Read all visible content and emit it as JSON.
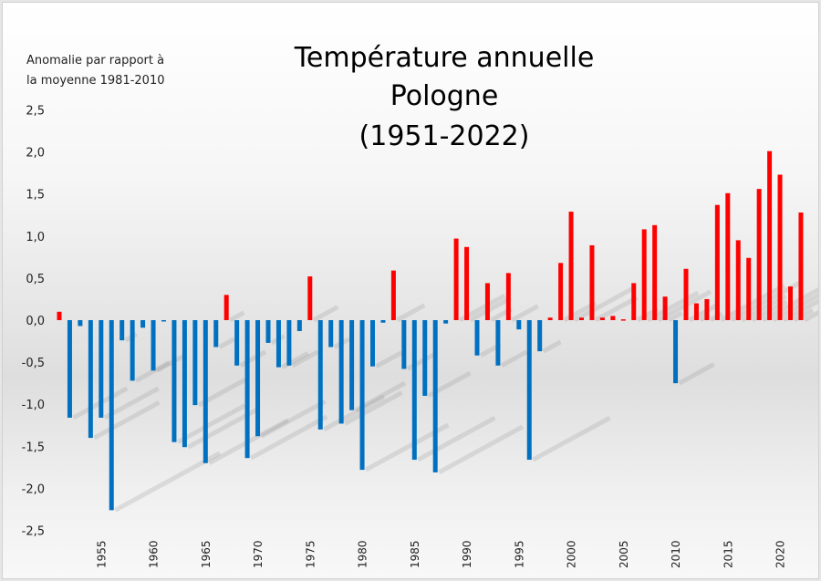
{
  "chart_data": {
    "type": "bar",
    "title_lines": [
      "Température annuelle",
      "Pologne",
      "(1951-2022)"
    ],
    "ylabel_lines": [
      "Anomalie par rapport à",
      "la moyenne 1981-2010"
    ],
    "xlabel": "",
    "ylim": [
      -2.5,
      2.5
    ],
    "yticks": [
      "2,5",
      "2,0",
      "1,5",
      "1,0",
      "0,5",
      "0,0",
      "-0,5",
      "-1,0",
      "-1,5",
      "-2,0",
      "-2,5"
    ],
    "ytick_values": [
      2.5,
      2.0,
      1.5,
      1.0,
      0.5,
      0.0,
      -0.5,
      -1.0,
      -1.5,
      -2.0,
      -2.5
    ],
    "xticks": [
      "1955",
      "1960",
      "1965",
      "1970",
      "1975",
      "1980",
      "1985",
      "1990",
      "1995",
      "2000",
      "2005",
      "2010",
      "2015",
      "2020"
    ],
    "grid": false,
    "legend": "none",
    "colors": {
      "positive": "#ff0000",
      "negative": "#0070c0"
    },
    "years": [
      1951,
      1952,
      1953,
      1954,
      1955,
      1956,
      1957,
      1958,
      1959,
      1960,
      1961,
      1962,
      1963,
      1964,
      1965,
      1966,
      1967,
      1968,
      1969,
      1970,
      1971,
      1972,
      1973,
      1974,
      1975,
      1976,
      1977,
      1978,
      1979,
      1980,
      1981,
      1982,
      1983,
      1984,
      1985,
      1986,
      1987,
      1988,
      1989,
      1990,
      1991,
      1992,
      1993,
      1994,
      1995,
      1996,
      1997,
      1998,
      1999,
      2000,
      2001,
      2002,
      2003,
      2004,
      2005,
      2006,
      2007,
      2008,
      2009,
      2010,
      2011,
      2012,
      2013,
      2014,
      2015,
      2016,
      2017,
      2018,
      2019,
      2020,
      2021,
      2022
    ],
    "values": [
      0.1,
      -1.16,
      -0.07,
      -1.4,
      -1.16,
      -2.26,
      -0.24,
      -0.72,
      -0.09,
      -0.6,
      -0.01,
      -1.45,
      -1.51,
      -1.01,
      -1.7,
      -0.32,
      0.3,
      -0.54,
      -1.64,
      -1.38,
      -0.27,
      -0.56,
      -0.54,
      -0.13,
      0.52,
      -1.3,
      -0.32,
      -1.23,
      -1.07,
      -1.78,
      -0.55,
      -0.03,
      0.59,
      -0.58,
      -1.66,
      -0.9,
      -1.81,
      -0.04,
      0.97,
      0.87,
      -0.42,
      0.44,
      -0.54,
      0.56,
      -0.11,
      -1.66,
      -0.37,
      0.03,
      0.68,
      1.29,
      0.03,
      0.89,
      0.03,
      0.05,
      0.01,
      0.44,
      1.08,
      1.13,
      0.28,
      -0.75,
      0.61,
      0.2,
      0.25,
      1.37,
      1.51,
      0.95,
      0.74,
      1.56,
      2.01,
      1.73,
      0.4,
      1.28
    ]
  }
}
